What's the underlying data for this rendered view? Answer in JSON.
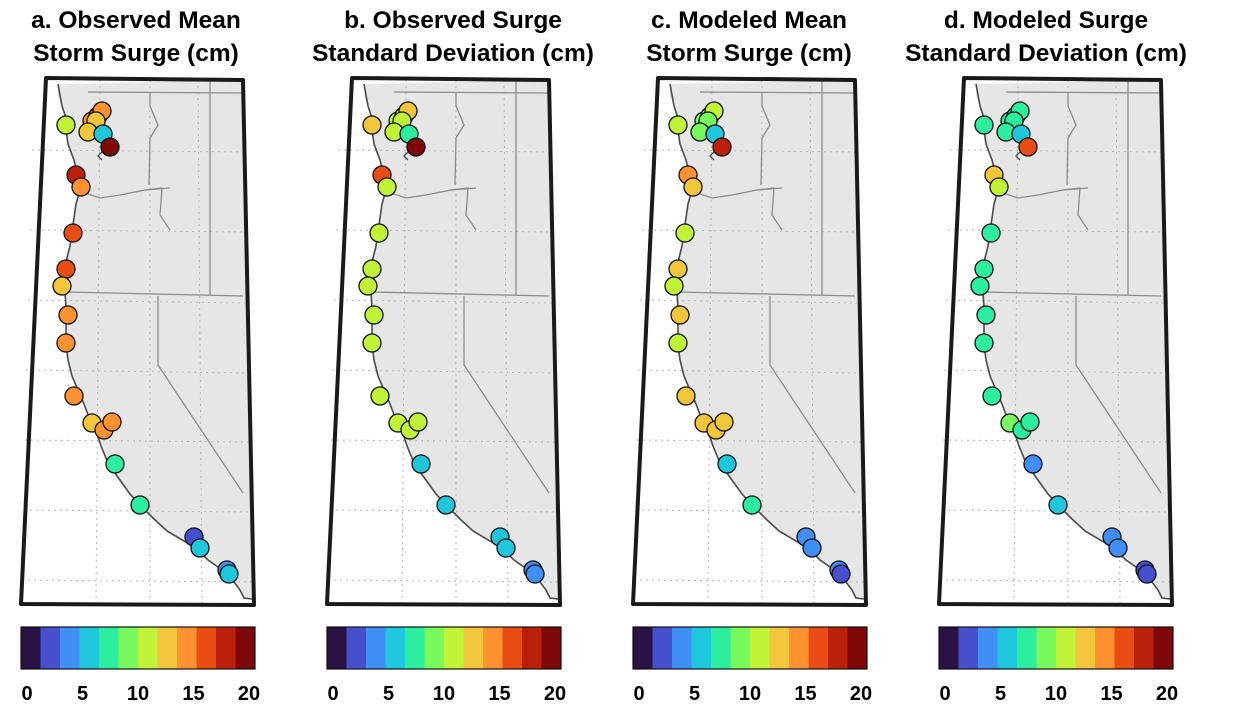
{
  "colorbar": {
    "ticks": [
      "0",
      "5",
      "10",
      "15",
      "20"
    ],
    "min": 0,
    "max": 20,
    "colors": [
      "#2a1245",
      "#4650cf",
      "#3f8ff7",
      "#1ec7dc",
      "#2bef9f",
      "#78f95c",
      "#c0f335",
      "#f1c63a",
      "#fe9230",
      "#e94d14",
      "#bb210a",
      "#7d0807"
    ]
  },
  "panels": [
    {
      "title_line1": "a. Observed Mean",
      "title_line2": "Storm Surge (cm)",
      "values": [
        11,
        14,
        15,
        14,
        13,
        13,
        6,
        19,
        17,
        14,
        16,
        15,
        12,
        14,
        14,
        14,
        12,
        14,
        14,
        8,
        7,
        3,
        5,
        4,
        5
      ]
    },
    {
      "title_line1": "b. Observed Surge",
      "title_line2": "Standard Deviation (cm)",
      "values": [
        12,
        11,
        11,
        12,
        10,
        10,
        8,
        20,
        15,
        11,
        11,
        11,
        10,
        10,
        10,
        11,
        10,
        10,
        10,
        6,
        6,
        5,
        5,
        4,
        4
      ]
    },
    {
      "title_line1": "c. Modeled Mean",
      "title_line2": "Storm Surge (cm)",
      "values": [
        10,
        9,
        9,
        10,
        9,
        9,
        5,
        18,
        14,
        12,
        11,
        12,
        11,
        12,
        11,
        12,
        13,
        13,
        13,
        5,
        8,
        4,
        4,
        4,
        3
      ]
    },
    {
      "title_line1": "d. Modeled Surge",
      "title_line2": "Standard Deviation (cm)",
      "values": [
        8,
        8,
        8,
        8,
        8,
        7,
        5,
        16,
        13,
        10,
        8,
        8,
        8,
        8,
        8,
        7,
        9,
        8,
        8,
        4,
        5,
        4,
        4,
        3,
        2
      ]
    }
  ]
}
